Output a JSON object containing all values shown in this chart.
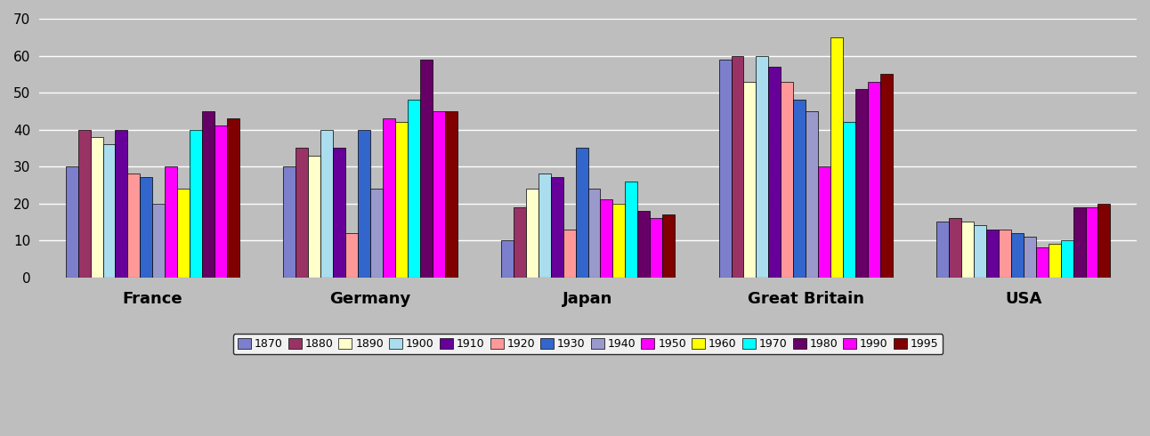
{
  "categories": [
    "France",
    "Germany",
    "Japan",
    "Great Britain",
    "USA"
  ],
  "years": [
    "1870",
    "1880",
    "1890",
    "1900",
    "1910",
    "1920",
    "1930",
    "1940",
    "1950",
    "1960",
    "1970",
    "1980",
    "1990",
    "1995"
  ],
  "colors": [
    "#7B7FCC",
    "#993366",
    "#FFFFCC",
    "#AADDEE",
    "#660099",
    "#FF9999",
    "#3366CC",
    "#9999CC",
    "#FF00FF",
    "#FFFF00",
    "#00FFFF",
    "#660066",
    "#FF00FF",
    "#800000"
  ],
  "data": {
    "France": [
      30,
      40,
      38,
      36,
      40,
      28,
      27,
      20,
      30,
      24,
      40,
      45,
      41,
      43
    ],
    "Germany": [
      30,
      35,
      33,
      40,
      35,
      12,
      40,
      24,
      43,
      42,
      48,
      59,
      45,
      45
    ],
    "Japan": [
      10,
      19,
      24,
      28,
      27,
      13,
      35,
      24,
      21,
      20,
      26,
      18,
      16,
      17
    ],
    "Great Britain": [
      59,
      60,
      53,
      60,
      57,
      53,
      48,
      45,
      30,
      65,
      42,
      51,
      53,
      55
    ],
    "USA": [
      15,
      16,
      15,
      14,
      13,
      13,
      12,
      11,
      8,
      9,
      10,
      19,
      19,
      20
    ]
  },
  "ylim": [
    0,
    70
  ],
  "yticks": [
    0,
    10,
    20,
    30,
    40,
    50,
    60,
    70
  ],
  "plot_bg_color": "#BEBEBE",
  "bar_edge_color": "#000000"
}
